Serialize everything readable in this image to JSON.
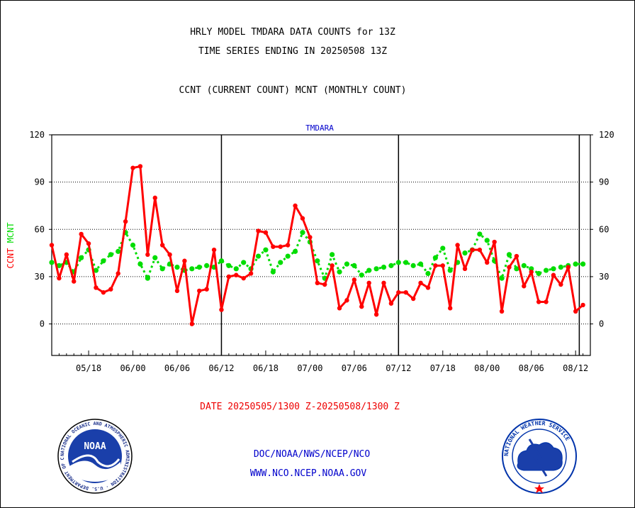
{
  "header": {
    "line1": "HRLY MODEL TMDARA DATA COUNTS for 13Z",
    "line2": "TIME SERIES ENDING IN 20250508 13Z",
    "line3": "CCNT (CURRENT COUNT) MCNT (MONTHLY COUNT)"
  },
  "footer": {
    "date_range": "DATE 20250505/1300 Z-20250508/1300 Z",
    "org_path": "DOC/NOAA/NWS/NCEP/NCO",
    "website": "WWW.NCO.NCEP.NOAA.GOV"
  },
  "logos": {
    "noaa_text": "NOAA",
    "noaa_ring": "NATIONAL OCEANIC AND ATMOSPHERIC ADMINISTRATION · U.S. DEPARTMENT OF COMMERCE ·",
    "nws_ring": "NATIONAL WEATHER SERVICE"
  },
  "colors": {
    "ccnt": "#ff0000",
    "mcnt": "#00dd00",
    "title_blue": "#0000cc",
    "axis": "#000000"
  },
  "chart_data": {
    "type": "line",
    "title": "TMDARA",
    "ylabel_series": [
      "CCNT",
      "MCNT"
    ],
    "ylim": [
      -20,
      120
    ],
    "yticks": [
      0,
      30,
      60,
      90,
      120
    ],
    "ytick_labels": [
      "0",
      "30",
      "60",
      "90",
      "120"
    ],
    "xlim": [
      0,
      73
    ],
    "xticks": [
      5,
      11,
      17,
      23,
      29,
      35,
      41,
      47,
      53,
      59,
      65,
      71
    ],
    "xtick_labels": [
      "05/18",
      "06/00",
      "06/06",
      "06/12",
      "06/18",
      "07/00",
      "07/06",
      "07/12",
      "07/18",
      "08/00",
      "08/06",
      "08/12"
    ],
    "grid": "horizontal dotted at y-ticks",
    "day_boundaries": [
      23,
      47,
      71.5
    ],
    "series": [
      {
        "name": "CCNT",
        "style": "solid",
        "points": [
          [
            0,
            50
          ],
          [
            1,
            29
          ],
          [
            2,
            44
          ],
          [
            3,
            27
          ],
          [
            4,
            57
          ],
          [
            5,
            51
          ],
          [
            6,
            23
          ],
          [
            7,
            20
          ],
          [
            8,
            22
          ],
          [
            9,
            32
          ],
          [
            10,
            65
          ],
          [
            11,
            99
          ],
          [
            12,
            100
          ],
          [
            13,
            44
          ],
          [
            14,
            80
          ],
          [
            15,
            50
          ],
          [
            16,
            44
          ],
          [
            17,
            21
          ],
          [
            18,
            40
          ],
          [
            19,
            0
          ],
          [
            20,
            21
          ],
          [
            21,
            22
          ],
          [
            22,
            47
          ],
          [
            23,
            9
          ],
          [
            24,
            30
          ],
          [
            25,
            31
          ],
          [
            26,
            29
          ],
          [
            27,
            32
          ],
          [
            28,
            59
          ],
          [
            29,
            58
          ],
          [
            30,
            49
          ],
          [
            31,
            49
          ],
          [
            32,
            50
          ],
          [
            33,
            75
          ],
          [
            34,
            67
          ],
          [
            35,
            55
          ],
          [
            36,
            26
          ],
          [
            37,
            25
          ],
          [
            38,
            37
          ],
          [
            39,
            10
          ],
          [
            40,
            15
          ],
          [
            41,
            28
          ],
          [
            42,
            11
          ],
          [
            43,
            26
          ],
          [
            44,
            6
          ],
          [
            45,
            26
          ],
          [
            46,
            13
          ],
          [
            47,
            20
          ],
          [
            48,
            20
          ],
          [
            49,
            16
          ],
          [
            50,
            26
          ],
          [
            51,
            23
          ],
          [
            52,
            37
          ],
          [
            53,
            37
          ],
          [
            54,
            10
          ],
          [
            55,
            50
          ],
          [
            56,
            35
          ],
          [
            57,
            47
          ],
          [
            58,
            47
          ],
          [
            59,
            39
          ],
          [
            60,
            52
          ],
          [
            61,
            8
          ],
          [
            62,
            36
          ],
          [
            63,
            43
          ],
          [
            64,
            24
          ],
          [
            65,
            33
          ],
          [
            66,
            14
          ],
          [
            67,
            14
          ],
          [
            68,
            31
          ],
          [
            69,
            25
          ],
          [
            70,
            36
          ],
          [
            71,
            8
          ],
          [
            72,
            12
          ]
        ]
      },
      {
        "name": "MCNT",
        "style": "dotted",
        "points": [
          [
            0,
            39
          ],
          [
            1,
            37
          ],
          [
            2,
            39
          ],
          [
            3,
            33
          ],
          [
            4,
            42
          ],
          [
            5,
            47
          ],
          [
            6,
            34
          ],
          [
            7,
            40
          ],
          [
            8,
            44
          ],
          [
            9,
            46
          ],
          [
            10,
            58
          ],
          [
            11,
            50
          ],
          [
            12,
            38
          ],
          [
            13,
            29
          ],
          [
            14,
            42
          ],
          [
            15,
            35
          ],
          [
            16,
            38
          ],
          [
            17,
            36
          ],
          [
            18,
            34
          ],
          [
            19,
            35
          ],
          [
            20,
            36
          ],
          [
            21,
            37
          ],
          [
            22,
            36
          ],
          [
            23,
            40
          ],
          [
            24,
            37
          ],
          [
            25,
            35
          ],
          [
            26,
            39
          ],
          [
            27,
            35
          ],
          [
            28,
            43
          ],
          [
            29,
            47
          ],
          [
            30,
            33
          ],
          [
            31,
            39
          ],
          [
            32,
            43
          ],
          [
            33,
            46
          ],
          [
            34,
            58
          ],
          [
            35,
            52
          ],
          [
            36,
            40
          ],
          [
            37,
            29
          ],
          [
            38,
            44
          ],
          [
            39,
            33
          ],
          [
            40,
            38
          ],
          [
            41,
            37
          ],
          [
            42,
            31
          ],
          [
            43,
            34
          ],
          [
            44,
            35
          ],
          [
            45,
            36
          ],
          [
            46,
            37
          ],
          [
            47,
            39
          ],
          [
            48,
            39
          ],
          [
            49,
            37
          ],
          [
            50,
            38
          ],
          [
            51,
            32
          ],
          [
            52,
            42
          ],
          [
            53,
            48
          ],
          [
            54,
            34
          ],
          [
            55,
            39
          ],
          [
            56,
            45
          ],
          [
            57,
            47
          ],
          [
            58,
            57
          ],
          [
            59,
            53
          ],
          [
            60,
            40
          ],
          [
            61,
            29
          ],
          [
            62,
            44
          ],
          [
            63,
            35
          ],
          [
            64,
            37
          ],
          [
            65,
            35
          ],
          [
            66,
            32
          ],
          [
            67,
            34
          ],
          [
            68,
            35
          ],
          [
            69,
            36
          ],
          [
            70,
            37
          ],
          [
            71,
            38
          ],
          [
            72,
            38
          ]
        ]
      }
    ]
  }
}
